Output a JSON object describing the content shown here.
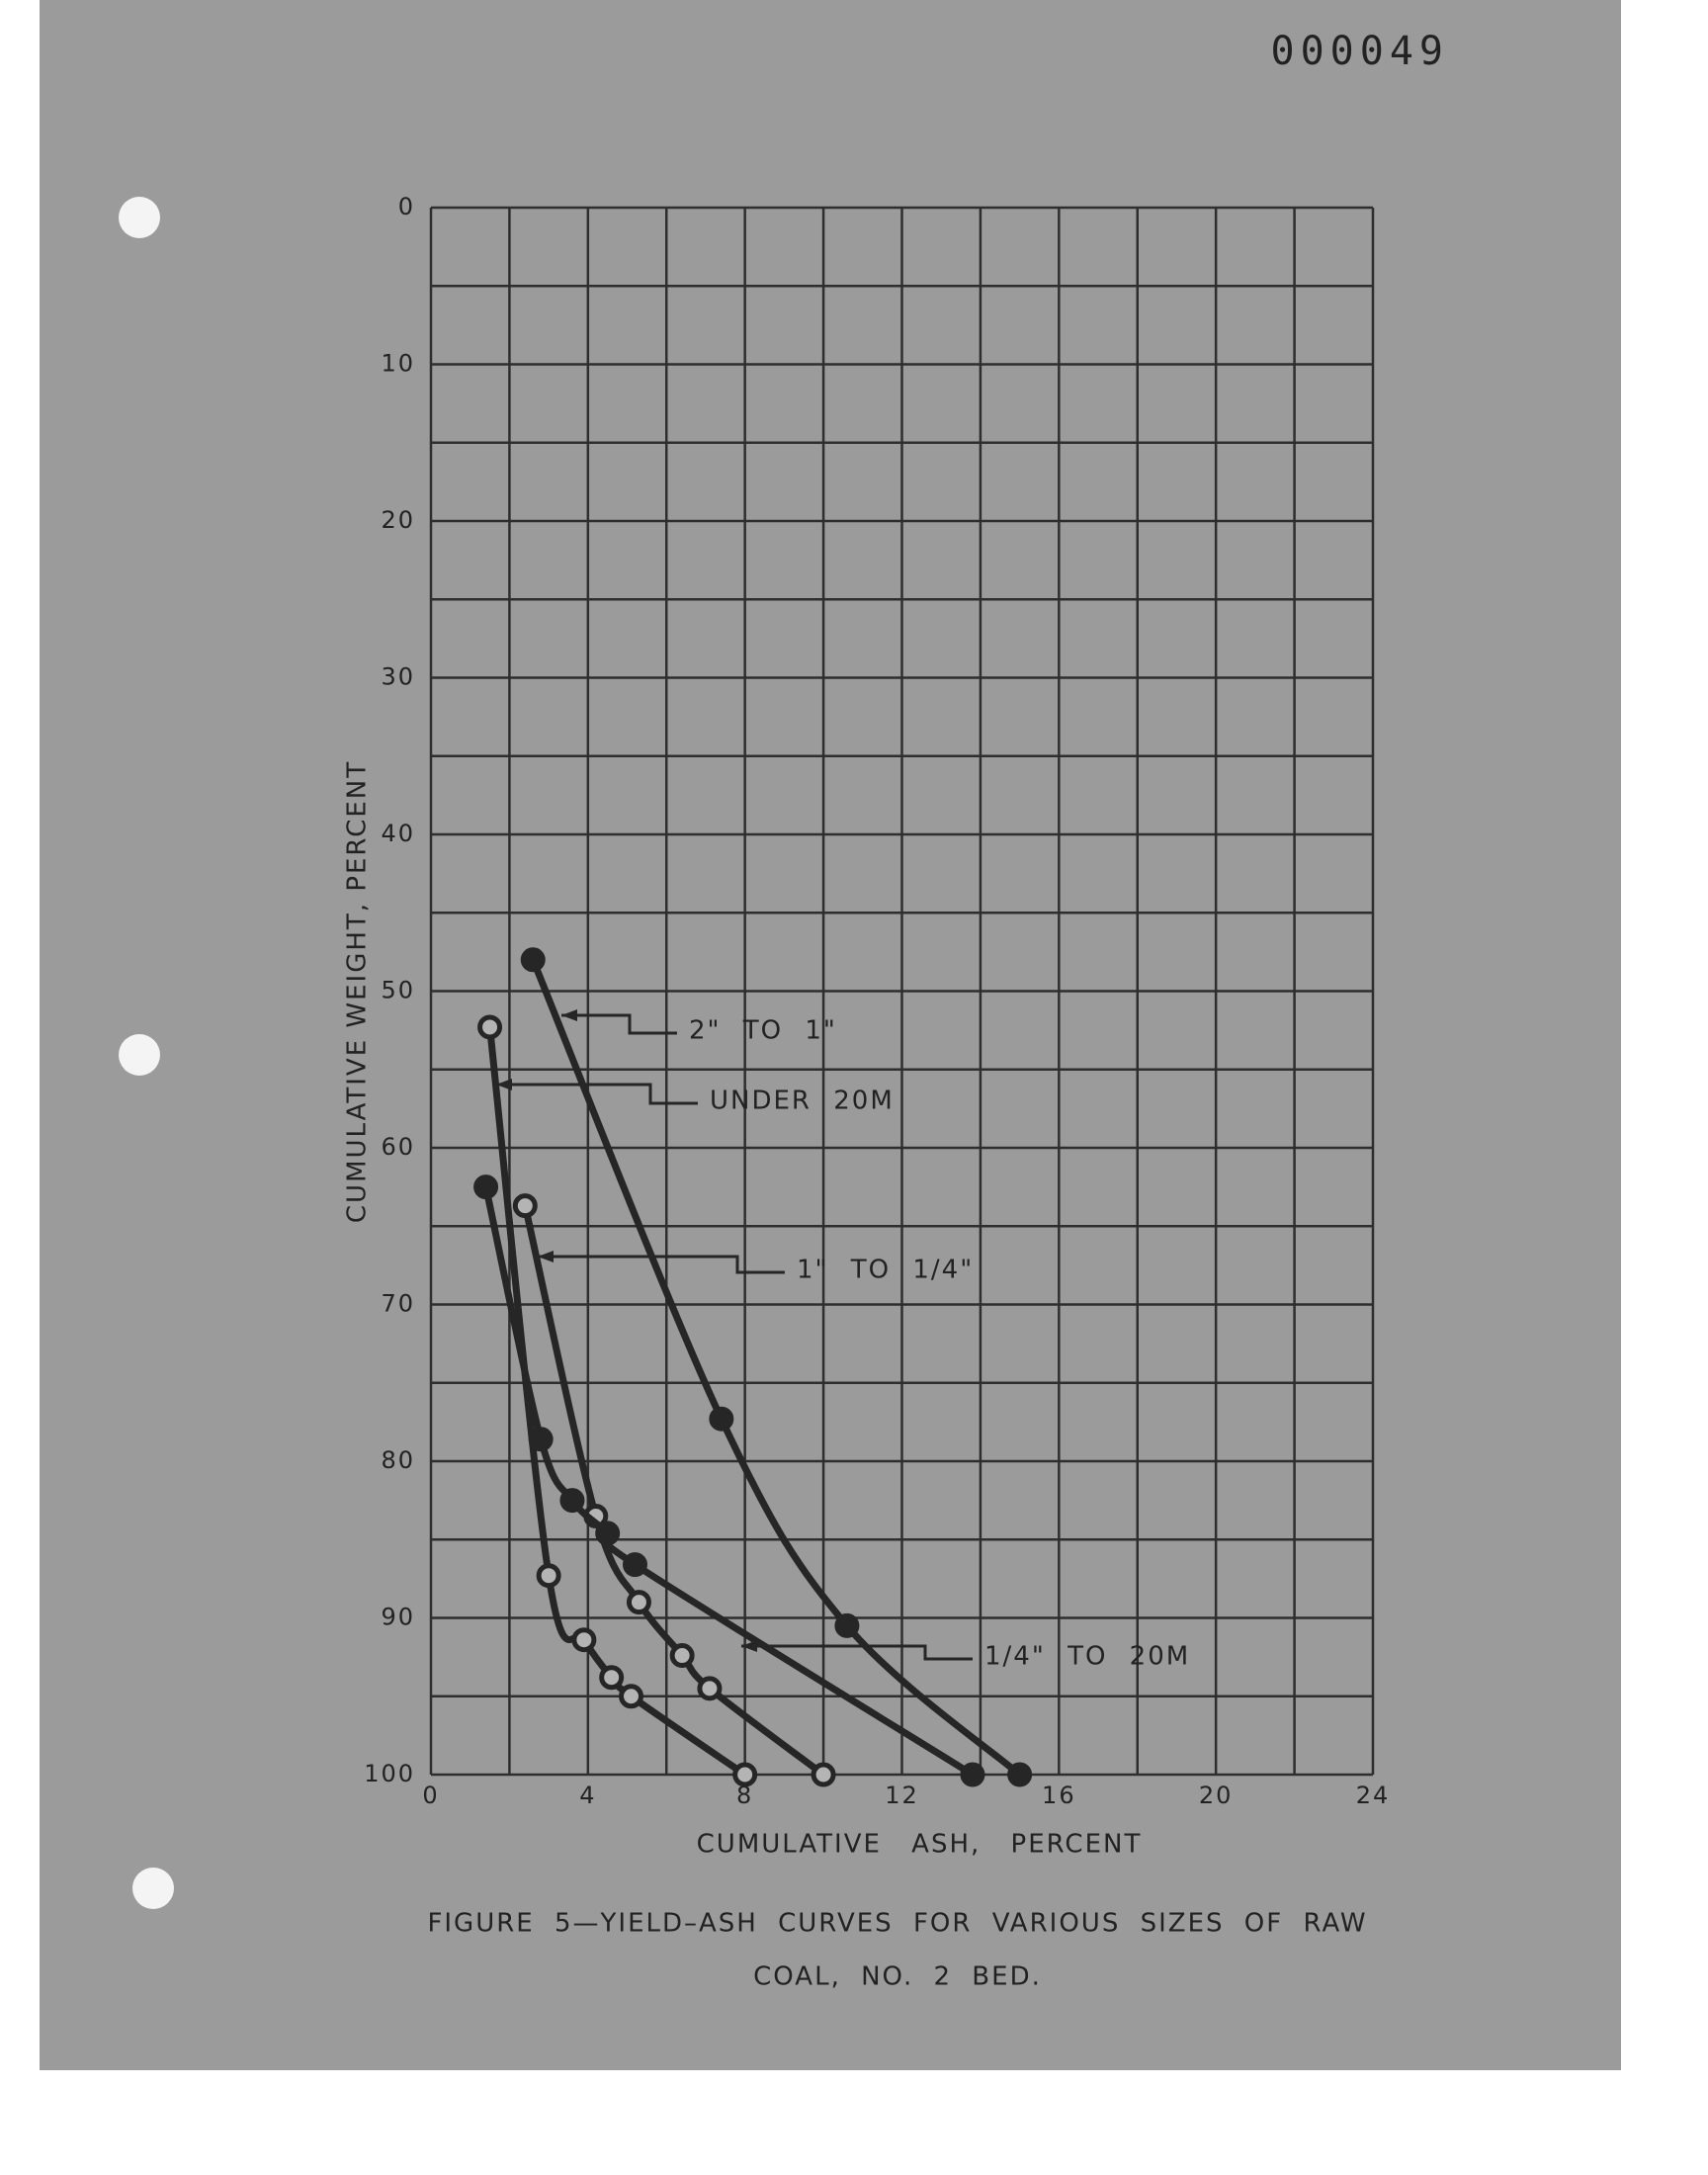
{
  "page_number": "000049",
  "chart_data": {
    "type": "line",
    "caption": [
      "FIGURE 5—YIELD–ASH CURVES FOR VARIOUS SIZES OF RAW",
      "COAL, NO. 2 BED."
    ],
    "x_label": "CUMULATIVE ASH, PERCENT",
    "y_label": "CUMULATIVE WEIGHT, PERCENT",
    "xlim": [
      0,
      24
    ],
    "xticks": [
      0,
      4,
      8,
      12,
      16,
      20,
      24
    ],
    "ylim": [
      0,
      100
    ],
    "yticks": [
      0,
      10,
      20,
      30,
      40,
      50,
      60,
      70,
      80,
      90,
      100
    ],
    "y_inverted": true,
    "grid": true,
    "xgrid": [
      0,
      2,
      4,
      6,
      8,
      10,
      12,
      14,
      16,
      18,
      20,
      22,
      24
    ],
    "ygrid": [
      0,
      5,
      10,
      15,
      20,
      25,
      30,
      35,
      40,
      45,
      50,
      55,
      60,
      65,
      70,
      75,
      80,
      85,
      90,
      95,
      100
    ],
    "series": [
      {
        "name": "2\" TO 1\"",
        "color": "#262626",
        "marker": "filled",
        "x": [
          2.6,
          7.4,
          10.6,
          15.0
        ],
        "values": [
          48,
          77.3,
          90.5,
          100
        ]
      },
      {
        "name": "UNDER 20M",
        "color": "#262626",
        "marker": "open",
        "x": [
          1.5,
          3.0,
          3.9,
          4.6,
          5.1,
          8.0
        ],
        "values": [
          52.3,
          87.3,
          91.4,
          93.8,
          95,
          100
        ]
      },
      {
        "name": "1\" TO 1/4\"",
        "color": "#262626",
        "marker": "open",
        "x": [
          2.4,
          4.2,
          5.3,
          6.4,
          7.1,
          10.0
        ],
        "values": [
          63.7,
          83.5,
          89,
          92.4,
          94.5,
          100
        ]
      },
      {
        "name": "1/4\" TO 20M",
        "color": "#262626",
        "marker": "filled",
        "x": [
          1.4,
          2.8,
          3.6,
          4.5,
          5.2,
          13.8
        ],
        "values": [
          62.5,
          78.6,
          82.5,
          84.6,
          86.6,
          100
        ]
      }
    ]
  }
}
